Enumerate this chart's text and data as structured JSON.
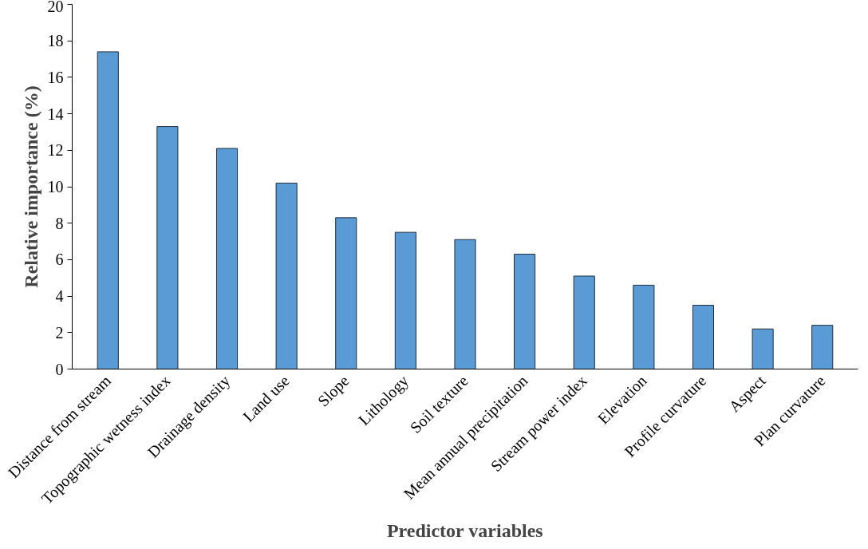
{
  "chart_data": {
    "type": "bar",
    "xlabel": "Predictor variables",
    "ylabel": "Relative importance (%)",
    "categories": [
      "Distance from stream",
      "Topographic wetness index",
      "Drainage density",
      "Land use",
      "Slope",
      "Lithology",
      "Soil texture",
      "Mean annual precipitation",
      "Stream power index",
      "Elevation",
      "Profile curvature",
      "Aspect",
      "Plan curvature"
    ],
    "values": [
      17.4,
      13.3,
      12.1,
      10.2,
      8.3,
      7.5,
      7.1,
      6.3,
      5.1,
      4.6,
      3.5,
      2.2,
      2.4
    ],
    "color": "#5b9bd5",
    "ylim": [
      0,
      20
    ],
    "yticks": [
      0,
      2,
      4,
      6,
      8,
      10,
      12,
      14,
      16,
      18,
      20
    ],
    "grid": false
  }
}
